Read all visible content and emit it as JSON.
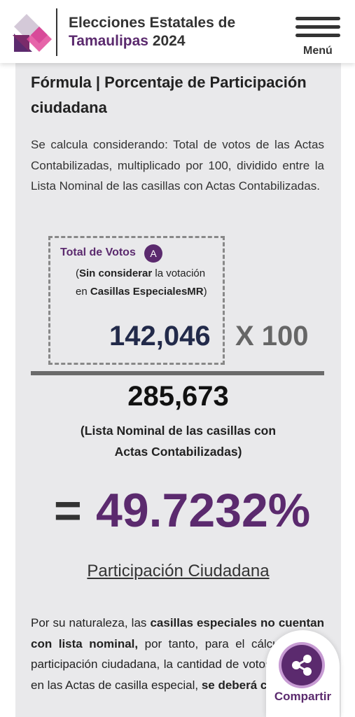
{
  "header": {
    "title_line1": "Elecciones Estatales de",
    "title_state": "Tamaulipas",
    "title_year": "2024",
    "menu_label": "Menú"
  },
  "formula": {
    "title": "Fórmula | Porcentaje de Participación ciudadana",
    "intro": "Se calcula considerando: Total de votos de las Actas Contabilizadas, multiplicado por 100, dividido entre la Lista Nominal de las casillas con Actas Contabilizadas.",
    "numerator": {
      "label": "Total de Votos",
      "badge": "A",
      "note_open": "(",
      "note_bold1": "Sin considerar",
      "note_mid": " la votación en ",
      "note_bold2": "Casillas EspecialesMR",
      "note_close": ")",
      "value": "142,046"
    },
    "multiplier": "X 100",
    "denominator": {
      "value": "285,673",
      "label": "(Lista Nominal de las casillas con Actas Contabilizadas)"
    },
    "equals": "=",
    "result": "49.7232%",
    "result_label": "Participación Ciudadana"
  },
  "note": {
    "p1": "Por su naturaleza, las ",
    "b1": "casillas especiales no cuentan con lista nominal,",
    "p2": " por tanto, para el cálculo de la participación ciudadana, la cantidad de votos asentada en las Actas de casilla especial, ",
    "b2": "se deberá conside"
  },
  "share": {
    "label": "Compartir"
  },
  "colors": {
    "brand": "#5b2a6e",
    "brand_light": "#c79bd3",
    "panel": "#e9e9eb"
  }
}
